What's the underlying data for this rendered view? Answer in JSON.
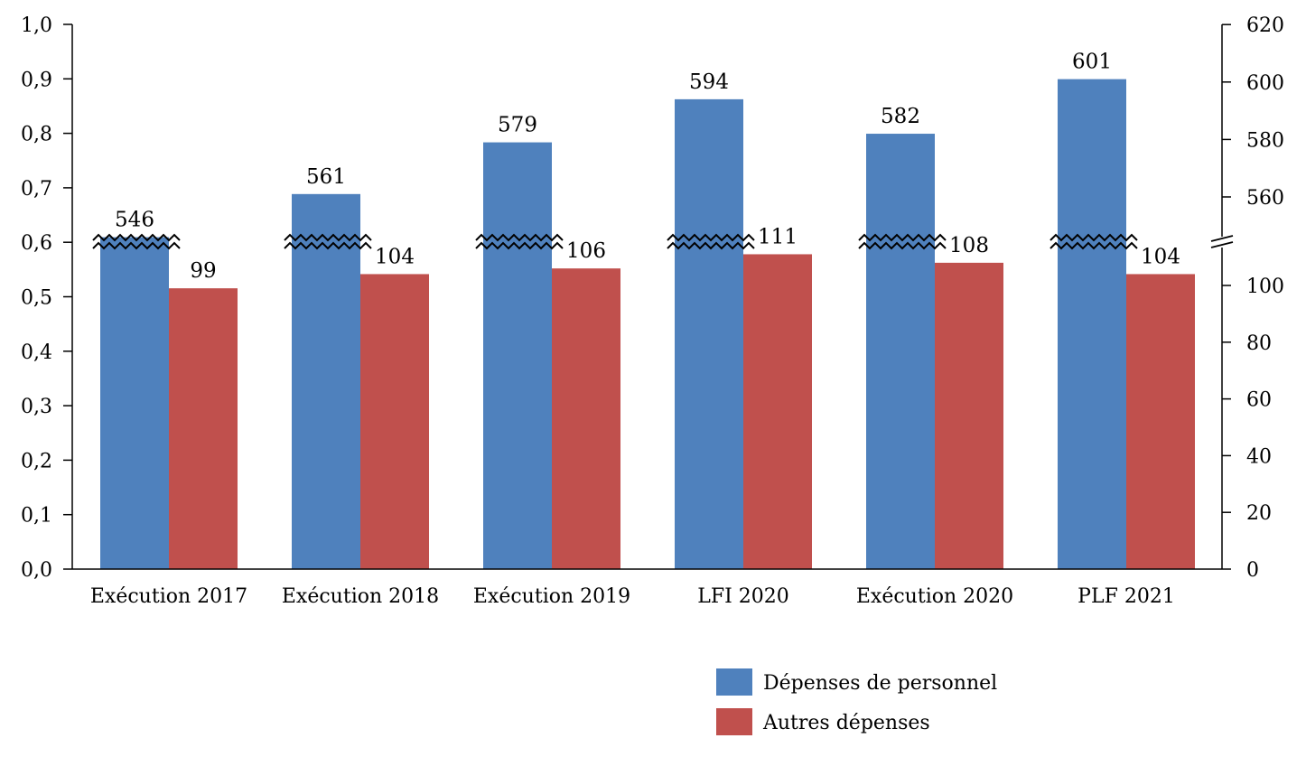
{
  "chart_data": {
    "type": "bar",
    "categories": [
      "Exécution 2017",
      "Exécution 2018",
      "Exécution 2019",
      "LFI 2020",
      "Exécution 2020",
      "PLF 2021"
    ],
    "series": [
      {
        "name": "Dépenses de personnel",
        "values": [
          546,
          561,
          579,
          594,
          582,
          601
        ],
        "color": "#4F81BD"
      },
      {
        "name": "Autres dépenses",
        "values": [
          99,
          104,
          106,
          111,
          108,
          104
        ],
        "color": "#C0504D"
      }
    ],
    "left_axis": {
      "ticks": [
        "0,0",
        "0,1",
        "0,2",
        "0,3",
        "0,4",
        "0,5",
        "0,6",
        "0,7",
        "0,8",
        "0,9",
        "1,0"
      ],
      "ylim": [
        0,
        1
      ]
    },
    "right_axis": {
      "broken": true,
      "lower_ticks": [
        0,
        20,
        40,
        60,
        80,
        100
      ],
      "upper_ticks": [
        560,
        580,
        600,
        620
      ],
      "lower_range": [
        0,
        116
      ],
      "upper_range": [
        544,
        620
      ]
    },
    "legend_position": "bottom-right",
    "grid": false
  }
}
